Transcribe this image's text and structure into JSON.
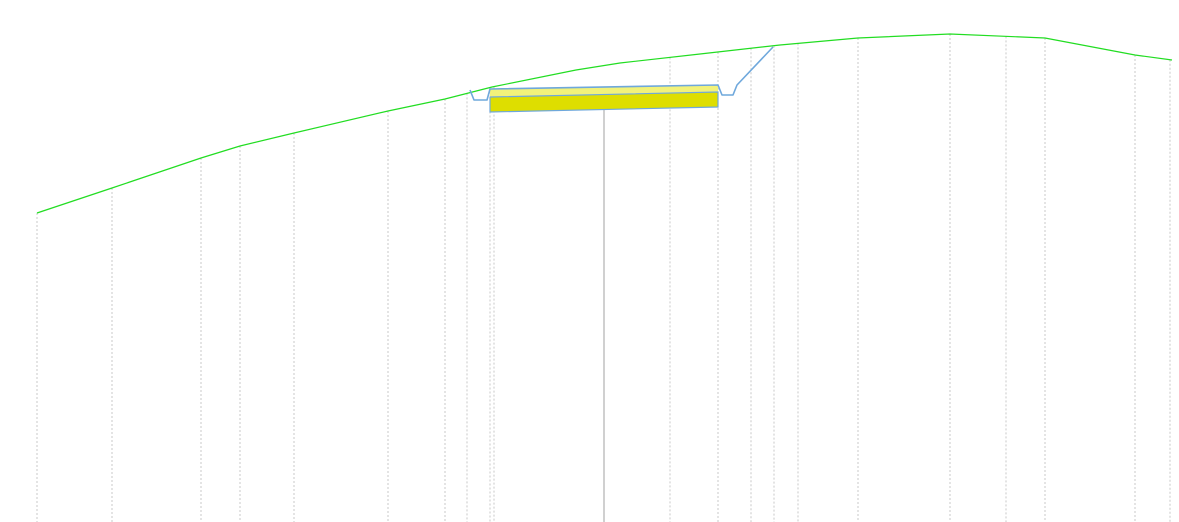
{
  "diagram": {
    "type": "road-cross-section-profile",
    "colors": {
      "background": "#ffffff",
      "ground_line": "#22dd22",
      "station_line": "#c8c8c8",
      "center_line": "#c0c0c0",
      "design_outline": "#6fa8dc",
      "pavement_lower": "#dede00",
      "pavement_upper": "#f2f27a"
    },
    "ground_line": {
      "name": "existing-ground"
    },
    "station_lines": {
      "count": 25
    },
    "center_line": {
      "name": "centerline"
    },
    "design_section": {
      "name": "proposed-road-section",
      "layers": [
        "pavement-upper",
        "pavement-lower"
      ]
    }
  }
}
